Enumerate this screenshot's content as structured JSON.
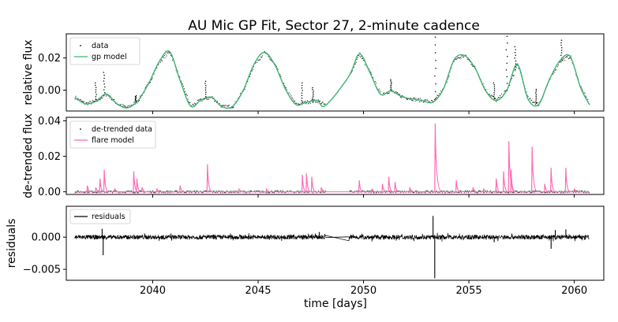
{
  "chart_data": {
    "type": "line",
    "title": "AU Mic GP Fit, Sector 27, 2-minute cadence",
    "xlabel": "time [days]",
    "xlim": [
      2035.9,
      2061.4
    ],
    "xticks": [
      2040,
      2045,
      2050,
      2055,
      2060
    ],
    "xtick_labels": [
      "2040",
      "2045",
      "2050",
      "2055",
      "2060"
    ],
    "gap": [
      2048.2,
      2049.3
    ],
    "panels": [
      {
        "id": "gp",
        "ylabel": "relative flux",
        "ylim": [
          -0.013,
          0.035
        ],
        "yticks": [
          0.0,
          0.02
        ],
        "ytick_labels": [
          "0.00",
          "0.02"
        ],
        "legend": {
          "position": "upper-left",
          "entries": [
            {
              "label": "data",
              "kind": "dot",
              "color": "#000000"
            },
            {
              "label": "gp model",
              "kind": "line",
              "color": "#3cb371"
            }
          ]
        },
        "series": [
          {
            "name": "gp model",
            "color": "#3cb371",
            "x": [
              2036.3,
              2036.8,
              2037.3,
              2037.8,
              2038.3,
              2038.8,
              2039.3,
              2039.8,
              2040.3,
              2040.8,
              2041.3,
              2041.8,
              2042.3,
              2042.8,
              2043.3,
              2043.8,
              2044.3,
              2044.8,
              2045.3,
              2045.8,
              2046.3,
              2046.8,
              2047.3,
              2047.8,
              2048.2,
              2049.3,
              2049.8,
              2050.3,
              2050.8,
              2051.3,
              2051.8,
              2052.3,
              2052.8,
              2053.3,
              2053.8,
              2054.3,
              2054.8,
              2055.3,
              2055.8,
              2056.3,
              2056.8,
              2057.3,
              2057.8,
              2058.3,
              2058.8,
              2059.3,
              2059.8,
              2060.3,
              2060.7
            ],
            "values": [
              -0.0045,
              -0.0085,
              -0.007,
              -0.0025,
              -0.0085,
              -0.011,
              -0.0065,
              0.004,
              0.0175,
              0.024,
              0.006,
              -0.01,
              -0.006,
              -0.0045,
              -0.0105,
              -0.01,
              0.0,
              0.016,
              0.0235,
              0.0155,
              0.0005,
              -0.009,
              -0.0075,
              -0.0065,
              -0.0095,
              0.0085,
              0.0225,
              0.011,
              -0.0025,
              -0.0005,
              -0.004,
              -0.0055,
              -0.0065,
              -0.0075,
              0.001,
              0.019,
              0.0215,
              0.0135,
              -0.0005,
              -0.0065,
              0.0,
              0.016,
              -0.0055,
              -0.009,
              0.006,
              0.018,
              0.021,
              0.0015,
              -0.0085
            ]
          }
        ],
        "data_spikes": [
          {
            "x": 2037.3,
            "value": 0.0045
          },
          {
            "x": 2037.7,
            "value": 0.011
          },
          {
            "x": 2039.2,
            "value": -0.0035
          },
          {
            "x": 2042.5,
            "value": 0.0055
          },
          {
            "x": 2047.1,
            "value": 0.0045
          },
          {
            "x": 2047.6,
            "value": 0.0015
          },
          {
            "x": 2051.3,
            "value": 0.0065
          },
          {
            "x": 2053.4,
            "value": 0.033
          },
          {
            "x": 2056.2,
            "value": 0.0045
          },
          {
            "x": 2056.8,
            "value": 0.0335
          },
          {
            "x": 2057.2,
            "value": 0.027
          },
          {
            "x": 2058.2,
            "value": 0.0005
          },
          {
            "x": 2059.4,
            "value": 0.031
          }
        ]
      },
      {
        "id": "detrended",
        "ylabel": "de-trended flux",
        "ylim": [
          -0.0015,
          0.042
        ],
        "yticks": [
          0.0,
          0.02,
          0.04
        ],
        "ytick_labels": [
          "0.00",
          "0.02",
          "0.04"
        ],
        "legend": {
          "position": "upper-left",
          "entries": [
            {
              "label": "de-trended data",
              "kind": "dot",
              "color": "#000000"
            },
            {
              "label": "flare model",
              "kind": "line",
              "color": "#ff69b4"
            }
          ]
        },
        "flares": [
          {
            "x": 2036.9,
            "peak": 0.0035
          },
          {
            "x": 2037.3,
            "peak": 0.0025
          },
          {
            "x": 2037.5,
            "peak": 0.0075
          },
          {
            "x": 2037.7,
            "peak": 0.0125
          },
          {
            "x": 2038.2,
            "peak": 0.0015
          },
          {
            "x": 2039.1,
            "peak": 0.0115
          },
          {
            "x": 2039.25,
            "peak": 0.0075
          },
          {
            "x": 2039.5,
            "peak": 0.0025
          },
          {
            "x": 2040.2,
            "peak": 0.0015
          },
          {
            "x": 2041.3,
            "peak": 0.0035
          },
          {
            "x": 2042.6,
            "peak": 0.0155
          },
          {
            "x": 2044.1,
            "peak": 0.0015
          },
          {
            "x": 2045.4,
            "peak": 0.0015
          },
          {
            "x": 2047.1,
            "peak": 0.0095
          },
          {
            "x": 2047.3,
            "peak": 0.0105
          },
          {
            "x": 2047.55,
            "peak": 0.0085
          },
          {
            "x": 2048.0,
            "peak": 0.0025
          },
          {
            "x": 2049.8,
            "peak": 0.0065
          },
          {
            "x": 2050.4,
            "peak": 0.0015
          },
          {
            "x": 2050.9,
            "peak": 0.0045
          },
          {
            "x": 2051.2,
            "peak": 0.0085
          },
          {
            "x": 2051.5,
            "peak": 0.0055
          },
          {
            "x": 2052.2,
            "peak": 0.0025
          },
          {
            "x": 2053.4,
            "peak": 0.0385
          },
          {
            "x": 2054.4,
            "peak": 0.0065
          },
          {
            "x": 2055.2,
            "peak": 0.0025
          },
          {
            "x": 2055.7,
            "peak": 0.0015
          },
          {
            "x": 2056.3,
            "peak": 0.0075
          },
          {
            "x": 2056.65,
            "peak": 0.0115
          },
          {
            "x": 2056.9,
            "peak": 0.0285
          },
          {
            "x": 2057.0,
            "peak": 0.0125
          },
          {
            "x": 2058.0,
            "peak": 0.0255
          },
          {
            "x": 2058.6,
            "peak": 0.0045
          },
          {
            "x": 2058.9,
            "peak": 0.0135
          },
          {
            "x": 2059.6,
            "peak": 0.0135
          },
          {
            "x": 2060.0,
            "peak": 0.0015
          }
        ]
      },
      {
        "id": "residuals",
        "ylabel": "residuals",
        "ylim": [
          -0.0067,
          0.0048
        ],
        "yticks": [
          0.0,
          -0.005
        ],
        "ytick_labels": [
          "0.000",
          "−0.005"
        ],
        "legend": {
          "position": "upper-left",
          "entries": [
            {
              "label": "residuals",
              "kind": "line",
              "color": "#000000"
            }
          ]
        },
        "noise_amplitude": 0.00035,
        "spikes": [
          {
            "x": 2037.6,
            "value": 0.0013
          },
          {
            "x": 2037.65,
            "value": -0.0028
          },
          {
            "x": 2047.9,
            "value": 0.0008
          },
          {
            "x": 2053.3,
            "value": 0.0033
          },
          {
            "x": 2053.38,
            "value": -0.0064
          },
          {
            "x": 2056.2,
            "value": -0.0008
          },
          {
            "x": 2058.9,
            "value": -0.0018
          },
          {
            "x": 2059.1,
            "value": 0.0011
          },
          {
            "x": 2059.6,
            "value": 0.0012
          }
        ]
      }
    ]
  }
}
